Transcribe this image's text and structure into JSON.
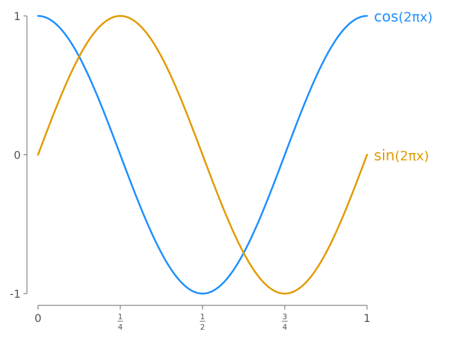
{
  "chart_data": {
    "type": "line",
    "title": "",
    "xlabel": "",
    "ylabel": "",
    "xlim": [
      0,
      1
    ],
    "ylim": [
      -1,
      1
    ],
    "grid": false,
    "legend": "inline labels at right end of each curve",
    "x_ticks": [
      {
        "value": 0,
        "label": "0"
      },
      {
        "value": 0.25,
        "num": "1",
        "den": "4"
      },
      {
        "value": 0.5,
        "num": "1",
        "den": "2"
      },
      {
        "value": 0.75,
        "num": "3",
        "den": "4"
      },
      {
        "value": 1,
        "label": "1"
      }
    ],
    "y_ticks": [
      {
        "value": 1,
        "label": "1"
      },
      {
        "value": 0,
        "label": "0"
      },
      {
        "value": -1,
        "label": "-1"
      }
    ],
    "series": [
      {
        "name": "cos(2πx)",
        "func": "cos",
        "label_main": "cos",
        "label_arg": "(2πx)",
        "color": "#1e8fff",
        "x": [
          0,
          0.125,
          0.25,
          0.375,
          0.5,
          0.625,
          0.75,
          0.875,
          1
        ],
        "y": [
          1,
          0.707,
          0,
          -0.707,
          -1,
          -0.707,
          0,
          0.707,
          1
        ]
      },
      {
        "name": "sin(2πx)",
        "func": "sin",
        "label_main": "sin",
        "label_arg": "(2πx)",
        "color": "#e29a00",
        "x": [
          0,
          0.125,
          0.25,
          0.375,
          0.5,
          0.625,
          0.75,
          0.875,
          1
        ],
        "y": [
          0,
          0.707,
          1,
          0.707,
          0,
          -0.707,
          -1,
          -0.707,
          0
        ]
      }
    ]
  }
}
